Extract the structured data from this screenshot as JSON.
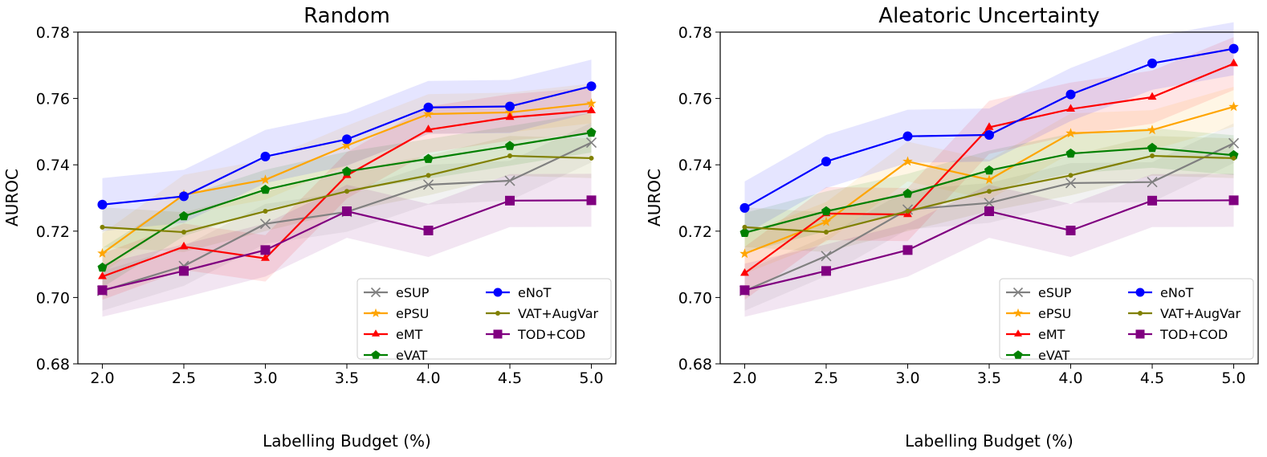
{
  "chart_data": [
    {
      "type": "line",
      "title": "Random",
      "xlabel": "Labelling Budget (%)",
      "ylabel": "AUROC",
      "x": [
        2.0,
        2.5,
        3.0,
        3.5,
        4.0,
        4.5,
        5.0
      ],
      "xticks": [
        "2.0",
        "2.5",
        "3.0",
        "3.5",
        "4.0",
        "4.5",
        "5.0"
      ],
      "yticks": [
        "0.68",
        "0.70",
        "0.72",
        "0.74",
        "0.76",
        "0.78"
      ],
      "xlim": [
        1.85,
        5.15
      ],
      "ylim": [
        0.68,
        0.78
      ],
      "grid": false,
      "legend": "lower-right",
      "series": [
        {
          "name": "eSUP",
          "color": "#808080",
          "marker": "x",
          "values": [
            0.702,
            0.7095,
            0.7222,
            0.7258,
            0.734,
            0.7352,
            0.7467
          ],
          "band": 0.006
        },
        {
          "name": "ePSU",
          "color": "#ffa500",
          "marker": "star",
          "values": [
            0.7133,
            0.731,
            0.7355,
            0.7458,
            0.7553,
            0.7558,
            0.7585
          ],
          "band": 0.006
        },
        {
          "name": "eMT",
          "color": "#ff0000",
          "marker": "triangle",
          "values": [
            0.7063,
            0.7153,
            0.7118,
            0.7368,
            0.7506,
            0.7543,
            0.7563
          ],
          "band": 0.007
        },
        {
          "name": "eVAT",
          "color": "#008000",
          "marker": "pentagon",
          "values": [
            0.709,
            0.7245,
            0.7325,
            0.738,
            0.7418,
            0.7457,
            0.7497
          ],
          "band": 0.006
        },
        {
          "name": "eNoT",
          "color": "#0000ff",
          "marker": "circle",
          "values": [
            0.728,
            0.7305,
            0.7425,
            0.7477,
            0.7573,
            0.7576,
            0.7637
          ],
          "band": 0.008
        },
        {
          "name": "VAT+AugVar",
          "color": "#808000",
          "marker": "dot",
          "values": [
            0.7212,
            0.7197,
            0.726,
            0.732,
            0.7368,
            0.7427,
            0.742
          ],
          "band": 0.006
        },
        {
          "name": "TOD+COD",
          "color": "#800080",
          "marker": "square",
          "values": [
            0.7022,
            0.708,
            0.7143,
            0.726,
            0.7202,
            0.7292,
            0.7293
          ],
          "band": 0.008
        }
      ]
    },
    {
      "type": "line",
      "title": "Aleatoric Uncertainty",
      "xlabel": "Labelling Budget (%)",
      "ylabel": "AUROC",
      "x": [
        2.0,
        2.5,
        3.0,
        3.5,
        4.0,
        4.5,
        5.0
      ],
      "xticks": [
        "2.0",
        "2.5",
        "3.0",
        "3.5",
        "4.0",
        "4.5",
        "5.0"
      ],
      "yticks": [
        "0.68",
        "0.70",
        "0.72",
        "0.74",
        "0.76",
        "0.78"
      ],
      "xlim": [
        1.85,
        5.15
      ],
      "ylim": [
        0.68,
        0.78
      ],
      "grid": false,
      "legend": "lower-right",
      "series": [
        {
          "name": "eSUP",
          "color": "#808080",
          "marker": "x",
          "values": [
            0.702,
            0.7125,
            0.7265,
            0.7285,
            0.7345,
            0.7348,
            0.7465
          ],
          "band": 0.006
        },
        {
          "name": "ePSU",
          "color": "#ffa500",
          "marker": "star",
          "values": [
            0.7132,
            0.7228,
            0.741,
            0.7355,
            0.7495,
            0.7505,
            0.7575
          ],
          "band": 0.006
        },
        {
          "name": "eMT",
          "color": "#ff0000",
          "marker": "triangle",
          "values": [
            0.7073,
            0.7253,
            0.725,
            0.7513,
            0.7568,
            0.7604,
            0.7705
          ],
          "band": 0.008
        },
        {
          "name": "eVAT",
          "color": "#008000",
          "marker": "pentagon",
          "values": [
            0.7195,
            0.726,
            0.7313,
            0.7383,
            0.7434,
            0.7451,
            0.7429
          ],
          "band": 0.006
        },
        {
          "name": "eNoT",
          "color": "#0000ff",
          "marker": "circle",
          "values": [
            0.727,
            0.741,
            0.7486,
            0.749,
            0.7612,
            0.7706,
            0.775
          ],
          "band": 0.008
        },
        {
          "name": "VAT+AugVar",
          "color": "#808000",
          "marker": "dot",
          "values": [
            0.7212,
            0.7197,
            0.726,
            0.732,
            0.7368,
            0.7427,
            0.742
          ],
          "band": 0.006
        },
        {
          "name": "TOD+COD",
          "color": "#800080",
          "marker": "square",
          "values": [
            0.7022,
            0.708,
            0.7143,
            0.726,
            0.7202,
            0.7292,
            0.7293
          ],
          "band": 0.008
        }
      ]
    }
  ]
}
